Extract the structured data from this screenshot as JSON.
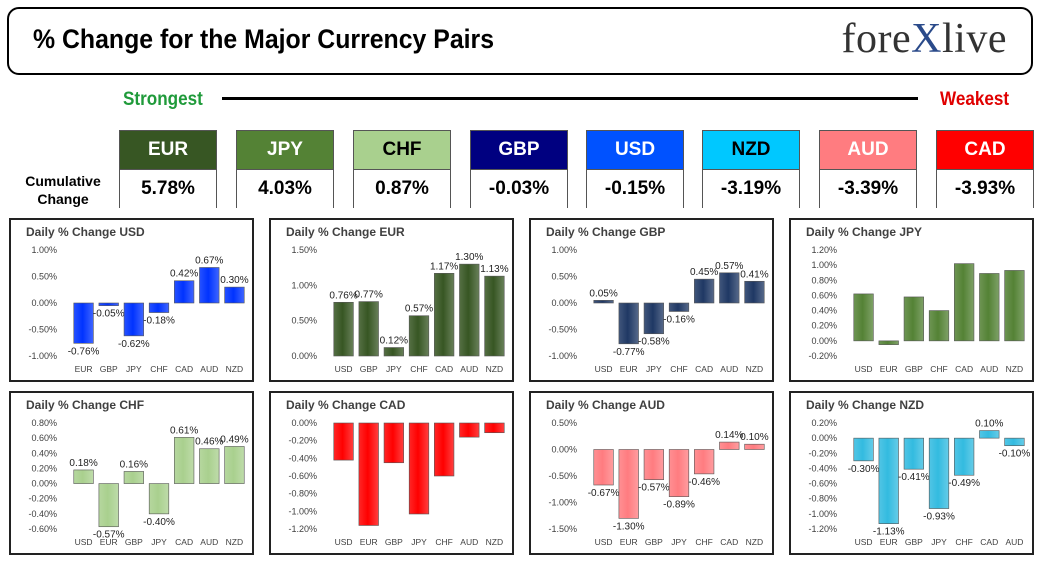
{
  "header": {
    "title": "% Change for the Major Currency Pairs",
    "logo_left": "fore",
    "logo_x": "X",
    "logo_right": "live"
  },
  "strength": {
    "strongest_label": "Strongest",
    "weakest_label": "Weakest"
  },
  "cumulative": {
    "label_line1": "Cumulative",
    "label_line2": "Change",
    "currencies": [
      {
        "name": "EUR",
        "value": "5.78%",
        "color": "#375623",
        "text_color": "#ffffff"
      },
      {
        "name": "JPY",
        "value": "4.03%",
        "color": "#548235",
        "text_color": "#ffffff"
      },
      {
        "name": "CHF",
        "value": "0.87%",
        "color": "#a9d08e",
        "text_color": "#000000"
      },
      {
        "name": "GBP",
        "value": "-0.03%",
        "color": "#000080",
        "text_color": "#ffffff"
      },
      {
        "name": "USD",
        "value": "-0.15%",
        "color": "#0052ff",
        "text_color": "#ffffff"
      },
      {
        "name": "NZD",
        "value": "-3.19%",
        "color": "#00c8ff",
        "text_color": "#000000"
      },
      {
        "name": "AUD",
        "value": "-3.39%",
        "color": "#ff7c80",
        "text_color": "#ffffff"
      },
      {
        "name": "CAD",
        "value": "-3.93%",
        "color": "#ff0000",
        "text_color": "#ffffff"
      }
    ]
  },
  "chart_data": [
    {
      "type": "bar",
      "title": "Daily % Change USD",
      "color": "#0033ff",
      "categories": [
        "EUR",
        "GBP",
        "JPY",
        "CHF",
        "CAD",
        "AUD",
        "NZD"
      ],
      "values": [
        -0.76,
        -0.05,
        -0.62,
        -0.18,
        0.42,
        0.67,
        0.3
      ],
      "labels": [
        "-0.76%",
        "-0.05%",
        "-0.62%",
        "-0.18%",
        "0.42%",
        "0.67%",
        "0.30%"
      ],
      "ylim": [
        -1.0,
        1.0
      ],
      "ticks": [
        1.0,
        0.5,
        0.0,
        -0.5,
        -1.0
      ],
      "tick_labels": [
        "1.00%",
        "0.50%",
        "0.00%",
        "-0.50%",
        "-1.00%"
      ]
    },
    {
      "type": "bar",
      "title": "Daily % Change EUR",
      "color": "#375623",
      "categories": [
        "USD",
        "GBP",
        "JPY",
        "CHF",
        "CAD",
        "AUD",
        "NZD"
      ],
      "values": [
        0.76,
        0.77,
        0.12,
        0.57,
        1.17,
        1.3,
        1.13
      ],
      "labels": [
        "0.76%",
        "0.77%",
        "0.12%",
        "0.57%",
        "1.17%",
        "1.30%",
        "1.13%"
      ],
      "ylim": [
        0.0,
        1.5
      ],
      "ticks": [
        1.5,
        1.0,
        0.5,
        0.0
      ],
      "tick_labels": [
        "1.50%",
        "1.00%",
        "0.50%",
        "0.00%"
      ]
    },
    {
      "type": "bar",
      "title": "Daily % Change GBP",
      "color": "#1f3864",
      "categories": [
        "USD",
        "EUR",
        "JPY",
        "CHF",
        "CAD",
        "AUD",
        "NZD"
      ],
      "values": [
        0.05,
        -0.77,
        -0.58,
        -0.16,
        0.45,
        0.57,
        0.41
      ],
      "labels": [
        "0.05%",
        "-0.77%",
        "-0.58%",
        "-0.16%",
        "0.45%",
        "0.57%",
        "0.41%"
      ],
      "ylim": [
        -1.0,
        1.0
      ],
      "ticks": [
        1.0,
        0.5,
        0.0,
        -0.5,
        -1.0
      ],
      "tick_labels": [
        "1.00%",
        "0.50%",
        "0.00%",
        "-0.50%",
        "-1.00%"
      ]
    },
    {
      "type": "bar",
      "title": "Daily % Change JPY",
      "color": "#548235",
      "categories": [
        "USD",
        "EUR",
        "GBP",
        "CHF",
        "CAD",
        "AUD",
        "NZD"
      ],
      "values": [
        0.62,
        -0.05,
        0.58,
        0.4,
        1.02,
        0.89,
        0.93
      ],
      "labels": [],
      "ylim": [
        -0.2,
        1.2
      ],
      "ticks": [
        1.2,
        1.0,
        0.8,
        0.6,
        0.4,
        0.2,
        0.0,
        -0.2
      ],
      "tick_labels": [
        "1.20%",
        "1.00%",
        "0.80%",
        "0.60%",
        "0.40%",
        "0.20%",
        "0.00%",
        "-0.20%"
      ]
    },
    {
      "type": "bar",
      "title": "Daily % Change CHF",
      "color": "#a9d08e",
      "categories": [
        "USD",
        "EUR",
        "GBP",
        "JPY",
        "CAD",
        "AUD",
        "NZD"
      ],
      "values": [
        0.18,
        -0.57,
        0.16,
        -0.4,
        0.61,
        0.46,
        0.49
      ],
      "labels": [
        "0.18%",
        "-0.57%",
        "0.16%",
        "-0.40%",
        "0.61%",
        "0.46%",
        "0.49%"
      ],
      "ylim": [
        -0.6,
        0.8
      ],
      "ticks": [
        0.8,
        0.6,
        0.4,
        0.2,
        0.0,
        -0.2,
        -0.4,
        -0.6
      ],
      "tick_labels": [
        "0.80%",
        "0.60%",
        "0.40%",
        "0.20%",
        "0.00%",
        "-0.20%",
        "-0.40%",
        "-0.60%"
      ]
    },
    {
      "type": "bar",
      "title": "Daily % Change CAD",
      "color": "#ff0000",
      "categories": [
        "USD",
        "EUR",
        "GBP",
        "JPY",
        "CHF",
        "AUD",
        "NZD"
      ],
      "values": [
        -0.42,
        -1.16,
        -0.45,
        -1.03,
        -0.6,
        -0.16,
        -0.11
      ],
      "labels": [],
      "ylim": [
        -1.2,
        0.0
      ],
      "ticks": [
        0.0,
        -0.2,
        -0.4,
        -0.6,
        -0.8,
        -1.0,
        -1.2
      ],
      "tick_labels": [
        "0.00%",
        "-0.20%",
        "-0.40%",
        "-0.60%",
        "-0.80%",
        "-1.00%",
        "-1.20%"
      ]
    },
    {
      "type": "bar",
      "title": "Daily % Change AUD",
      "color": "#ff7c80",
      "categories": [
        "USD",
        "EUR",
        "GBP",
        "JPY",
        "CHF",
        "CAD",
        "NZD"
      ],
      "values": [
        -0.67,
        -1.3,
        -0.57,
        -0.89,
        -0.46,
        0.14,
        0.1
      ],
      "labels": [
        "-0.67%",
        "-1.30%",
        "-0.57%",
        "-0.89%",
        "-0.46%",
        "0.14%",
        "0.10%"
      ],
      "ylim": [
        -1.5,
        0.5
      ],
      "ticks": [
        0.5,
        0.0,
        -0.5,
        -1.0,
        -1.5
      ],
      "tick_labels": [
        "0.50%",
        "0.00%",
        "-0.50%",
        "-1.00%",
        "-1.50%"
      ]
    },
    {
      "type": "bar",
      "title": "Daily % Change NZD",
      "color": "#33bbe0",
      "categories": [
        "USD",
        "EUR",
        "GBP",
        "JPY",
        "CHF",
        "CAD",
        "AUD"
      ],
      "values": [
        -0.3,
        -1.13,
        -0.41,
        -0.93,
        -0.49,
        0.1,
        -0.1
      ],
      "labels": [
        "-0.30%",
        "-1.13%",
        "-0.41%",
        "-0.93%",
        "-0.49%",
        "0.10%",
        "-0.10%"
      ],
      "ylim": [
        -1.2,
        0.2
      ],
      "ticks": [
        0.2,
        0.0,
        -0.2,
        -0.4,
        -0.6,
        -0.8,
        -1.0,
        -1.2
      ],
      "tick_labels": [
        "0.20%",
        "0.00%",
        "-0.20%",
        "-0.40%",
        "-0.60%",
        "-0.80%",
        "-1.00%",
        "-1.20%"
      ]
    }
  ]
}
